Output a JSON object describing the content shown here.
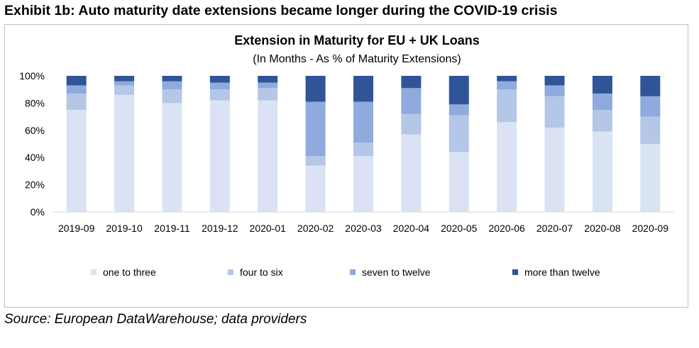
{
  "exhibit_title": "Exhibit 1b: Auto maturity date extensions became longer during the COVID-19 crisis",
  "source": "Source: European DataWarehouse; data providers",
  "chart_data": {
    "type": "bar",
    "stacked": true,
    "title": "Extension in Maturity for EU + UK Loans",
    "subtitle": "(In Months - As % of Maturity Extensions)",
    "xlabel": "",
    "ylabel": "",
    "ylim": [
      0,
      100
    ],
    "yticks": [
      "0%",
      "20%",
      "40%",
      "60%",
      "80%",
      "100%"
    ],
    "yticks_values": [
      0,
      20,
      40,
      60,
      80,
      100
    ],
    "grid": false,
    "legend_position": "bottom",
    "categories": [
      "2019-09",
      "2019-10",
      "2019-11",
      "2019-12",
      "2020-01",
      "2020-02",
      "2020-03",
      "2020-04",
      "2020-05",
      "2020-06",
      "2020-07",
      "2020-08",
      "2020-09"
    ],
    "series": [
      {
        "name": "one to three",
        "color": "#dae3f3",
        "values": [
          75,
          86,
          80,
          82,
          82,
          34,
          41,
          57,
          44,
          66,
          62,
          59,
          50
        ]
      },
      {
        "name": "four to six",
        "color": "#b4c7e7",
        "values": [
          12,
          7,
          10,
          8,
          9,
          7,
          10,
          15,
          27,
          24,
          23,
          16,
          20
        ]
      },
      {
        "name": "seven to twelve",
        "color": "#8faadc",
        "values": [
          6,
          3,
          6,
          5,
          4,
          40,
          30,
          19,
          8,
          6,
          8,
          12,
          15
        ]
      },
      {
        "name": "more than twelve",
        "color": "#2f5597",
        "values": [
          7,
          4,
          4,
          5,
          5,
          19,
          19,
          9,
          21,
          4,
          7,
          13,
          15
        ]
      }
    ]
  }
}
